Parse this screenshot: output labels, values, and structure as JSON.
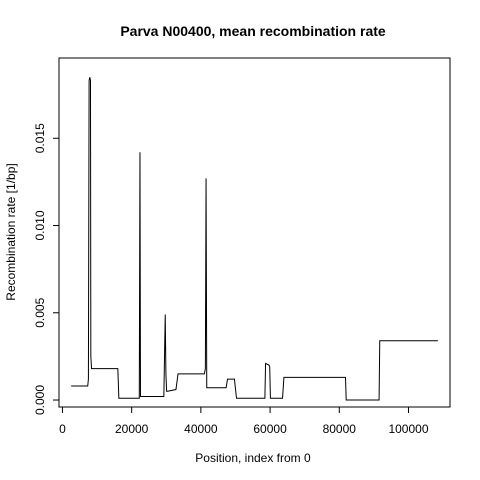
{
  "chart_data": {
    "type": "line",
    "title": "Parva N00400, mean recombination rate",
    "xlabel": "Position, index from 0",
    "ylabel": "Recombination rate [1/bp]",
    "xlim": [
      -1000,
      112000
    ],
    "ylim": [
      -0.0004,
      0.0196
    ],
    "x_ticks": [
      0,
      20000,
      40000,
      60000,
      80000,
      100000
    ],
    "x_tick_labels": [
      "0",
      "20000",
      "40000",
      "60000",
      "80000",
      "100000"
    ],
    "y_ticks": [
      0.0,
      0.005,
      0.01,
      0.015
    ],
    "y_tick_labels": [
      "0.000",
      "0.005",
      "0.010",
      "0.015"
    ],
    "grid": false,
    "legend": "none",
    "line_color": "#000000",
    "series": [
      {
        "x": [
          2500,
          7300,
          7500,
          7700,
          7900,
          8100,
          8200,
          8400,
          16000,
          16300,
          22200,
          22400,
          22550,
          22750,
          29300,
          29700,
          29900,
          30100,
          30400,
          32800,
          33400,
          41000,
          41300,
          41500,
          41700,
          42100,
          47300,
          47700,
          49700,
          50300,
          58500,
          58700,
          59700,
          59900,
          60100,
          63600,
          64000,
          81800,
          82000,
          91500,
          91700,
          108500
        ],
        "y": [
          0.0008,
          0.0008,
          0.0012,
          0.0183,
          0.0185,
          0.0183,
          0.0025,
          0.0018,
          0.0018,
          0.0001,
          0.0001,
          0.0142,
          0.0002,
          0.0002,
          0.0002,
          0.0049,
          0.0015,
          0.0005,
          0.0005,
          0.0006,
          0.0015,
          0.0015,
          0.0018,
          0.0127,
          0.0007,
          0.0007,
          0.0007,
          0.0012,
          0.0012,
          0.0001,
          0.0001,
          0.0021,
          0.002,
          0.0019,
          0.0001,
          0.0001,
          0.0013,
          0.0013,
          0.0,
          0.0,
          0.0034,
          0.0034
        ]
      }
    ]
  }
}
